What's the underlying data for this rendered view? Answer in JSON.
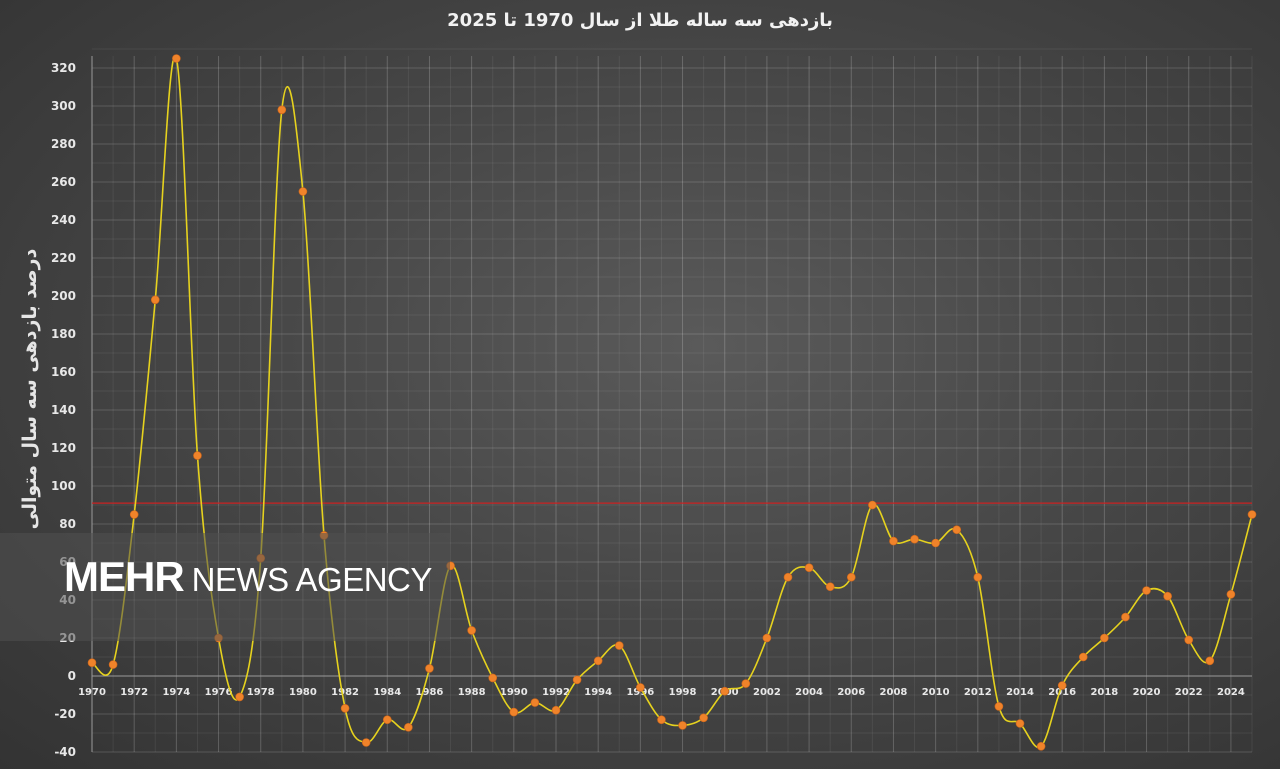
{
  "chart_data": {
    "type": "line",
    "title": "بازدهی سه ساله طلا از سال 1970 تا 2025",
    "ylabel": "درصد بازدهی سه سال متوالی",
    "xlabel": "",
    "ylim": [
      -40,
      330
    ],
    "yticks": [
      -40,
      -20,
      0,
      20,
      40,
      60,
      80,
      100,
      120,
      140,
      160,
      180,
      200,
      220,
      240,
      260,
      280,
      300,
      320
    ],
    "xticks": [
      1970,
      1972,
      1974,
      1976,
      1978,
      1980,
      1982,
      1984,
      1986,
      1988,
      1990,
      1992,
      1994,
      1996,
      1998,
      2000,
      2002,
      2004,
      2006,
      2008,
      2010,
      2012,
      2014,
      2016,
      2018,
      2020,
      2022,
      2024
    ],
    "x": [
      1970,
      1971,
      1972,
      1973,
      1974,
      1975,
      1976,
      1977,
      1978,
      1979,
      1980,
      1981,
      1982,
      1983,
      1984,
      1985,
      1986,
      1987,
      1988,
      1989,
      1990,
      1991,
      1992,
      1993,
      1994,
      1995,
      1996,
      1997,
      1998,
      1999,
      2000,
      2001,
      2002,
      2003,
      2004,
      2005,
      2006,
      2007,
      2008,
      2009,
      2010,
      2011,
      2012,
      2013,
      2014,
      2015,
      2016,
      2017,
      2018,
      2019,
      2020,
      2021,
      2022,
      2023,
      2024,
      2025
    ],
    "series": [
      {
        "values": [
          7,
          6,
          85,
          198,
          325,
          116,
          20,
          -11,
          62,
          298,
          255,
          74,
          -17,
          -35,
          -23,
          -27,
          4,
          58,
          24,
          -1,
          -19,
          -14,
          -18,
          -2,
          8,
          16,
          -6,
          -23,
          -26,
          -22,
          -8,
          -4,
          20,
          52,
          57,
          47,
          52,
          90,
          71,
          72,
          70,
          77,
          52,
          -16,
          -25,
          -37,
          -5,
          10,
          20,
          31,
          45,
          42,
          19,
          8,
          43,
          85
        ],
        "color": "#e6d21e",
        "marker_color": "#f0832a"
      }
    ],
    "reference_line": {
      "value": 91,
      "color": "#cc2222"
    },
    "grid": true,
    "legend": "none"
  },
  "watermark": {
    "brand": "MEHR",
    "rest": "NEWS AGENCY"
  }
}
